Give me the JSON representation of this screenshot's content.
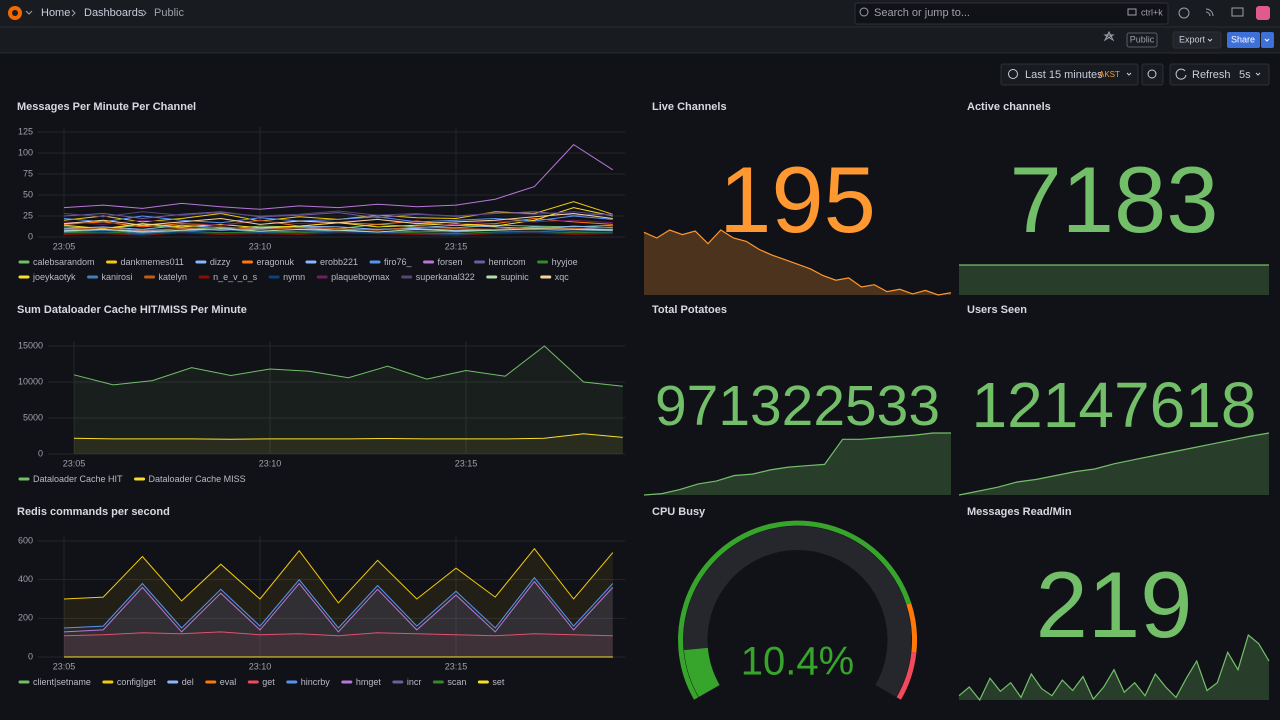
{
  "nav": {
    "breadcrumbs": [
      "Home",
      "Dashboards",
      "Public"
    ],
    "search": "Search or jump to...",
    "shortcut": "ctrl+k"
  },
  "toolbar": {
    "badge": "Public",
    "export": "Export",
    "share": "Share",
    "time_range": "Last 15 minutes",
    "timezone": "AKST",
    "refresh": "Refresh",
    "interval": "5s"
  },
  "panels": [
    {
      "type": "timeseries",
      "title": "Messages Per Minute Per Channel",
      "x": [
        "23:05",
        null,
        null,
        null,
        null,
        "23:10",
        null,
        null,
        null,
        null,
        "23:15",
        null,
        null,
        null,
        null
      ],
      "ylim": [
        0,
        125
      ],
      "yticks": [
        0,
        25,
        50,
        75,
        100,
        125
      ],
      "series": [
        {
          "name": "calebsarandom",
          "color": "#73bf69",
          "values": [
            12,
            10,
            14,
            11,
            9,
            13,
            12,
            10,
            15,
            12,
            11,
            14,
            13,
            12,
            14
          ]
        },
        {
          "name": "dankmemes011",
          "color": "#f2cc0c",
          "values": [
            20,
            25,
            18,
            22,
            28,
            19,
            24,
            21,
            26,
            23,
            22,
            30,
            28,
            42,
            27
          ]
        },
        {
          "name": "dizzy",
          "color": "#8ab8ff",
          "values": [
            8,
            9,
            7,
            10,
            8,
            9,
            11,
            8,
            9,
            10,
            8,
            9,
            12,
            10,
            9
          ]
        },
        {
          "name": "eragonuk",
          "color": "#ff780a",
          "values": [
            15,
            18,
            12,
            16,
            14,
            20,
            13,
            17,
            15,
            19,
            14,
            16,
            22,
            18,
            15
          ]
        },
        {
          "name": "erobb221",
          "color": "#8ab8ff",
          "values": [
            10,
            12,
            9,
            14,
            11,
            10,
            13,
            12,
            9,
            11,
            14,
            12,
            10,
            13,
            11
          ]
        },
        {
          "name": "firo76_",
          "color": "#5794f2",
          "values": [
            22,
            18,
            25,
            20,
            17,
            23,
            19,
            21,
            24,
            18,
            20,
            22,
            19,
            25,
            21
          ]
        },
        {
          "name": "forsen",
          "color": "#b877d9",
          "values": [
            35,
            38,
            34,
            40,
            36,
            33,
            37,
            35,
            39,
            36,
            38,
            45,
            60,
            110,
            80
          ]
        },
        {
          "name": "henricom",
          "color": "#705da0",
          "values": [
            25,
            28,
            22,
            27,
            30,
            24,
            26,
            29,
            23,
            27,
            25,
            28,
            30,
            26,
            27
          ]
        },
        {
          "name": "hyyjoe",
          "color": "#37872d",
          "values": [
            5,
            6,
            4,
            7,
            5,
            6,
            5,
            7,
            6,
            5,
            4,
            6,
            7,
            5,
            6
          ]
        },
        {
          "name": "joeykaotyk",
          "color": "#fade2a",
          "values": [
            14,
            10,
            16,
            12,
            15,
            11,
            13,
            17,
            12,
            14,
            16,
            13,
            20,
            35,
            25
          ]
        },
        {
          "name": "kanirosi",
          "color": "#447ebc",
          "values": [
            6,
            8,
            5,
            7,
            9,
            6,
            7,
            8,
            5,
            7,
            6,
            8,
            9,
            7,
            8
          ]
        },
        {
          "name": "katelyn",
          "color": "#c15c17",
          "values": [
            9,
            11,
            8,
            10,
            12,
            9,
            11,
            10,
            8,
            12,
            10,
            9,
            11,
            10,
            12
          ]
        },
        {
          "name": "n_e_v_o_s",
          "color": "#890f02",
          "values": [
            3,
            4,
            2,
            5,
            3,
            4,
            3,
            5,
            4,
            3,
            2,
            4,
            5,
            3,
            4
          ]
        },
        {
          "name": "nymn",
          "color": "#0a437c",
          "values": [
            4,
            5,
            3,
            6,
            4,
            5,
            4,
            6,
            5,
            4,
            3,
            5,
            6,
            4,
            5
          ]
        },
        {
          "name": "plaqueboymax",
          "color": "#6d1f62",
          "values": [
            18,
            15,
            20,
            17,
            14,
            19,
            16,
            18,
            21,
            17,
            15,
            19,
            18,
            20,
            17
          ]
        },
        {
          "name": "superkanal322",
          "color": "#584477",
          "values": [
            28,
            24,
            30,
            26,
            29,
            25,
            27,
            31,
            26,
            28,
            24,
            29,
            27,
            30,
            26
          ]
        },
        {
          "name": "supinic",
          "color": "#b7dbab",
          "values": [
            7,
            9,
            6,
            8,
            10,
            7,
            9,
            8,
            6,
            9,
            7,
            8,
            10,
            9,
            8
          ]
        },
        {
          "name": "xqc",
          "color": "#f4d598",
          "values": [
            16,
            20,
            14,
            18,
            22,
            15,
            19,
            17,
            21,
            16,
            18,
            20,
            24,
            28,
            22
          ]
        }
      ]
    },
    {
      "type": "stat",
      "title": "Live Channels",
      "value": 195,
      "color": "#ff9830",
      "sparkline": [
        60,
        55,
        62,
        58,
        61,
        50,
        62,
        55,
        52,
        45,
        40,
        36,
        32,
        28,
        22,
        18,
        20,
        12,
        14,
        8,
        10,
        6,
        9,
        5,
        7
      ]
    },
    {
      "type": "stat",
      "title": "Active channels",
      "value": 7183,
      "color": "#73bf69",
      "sparkline": [
        7183,
        7183,
        7183,
        7183,
        7183,
        7183,
        7183,
        7183,
        7183,
        7183,
        7183,
        7183
      ]
    },
    {
      "type": "timeseries",
      "title": "Sum Dataloader Cache HIT/MISS Per Minute",
      "x": [
        "23:05",
        null,
        null,
        null,
        null,
        "23:10",
        null,
        null,
        null,
        null,
        "23:15",
        null,
        null,
        null,
        null
      ],
      "ylim": [
        0,
        15000
      ],
      "yticks": [
        0,
        5000,
        10000,
        15000
      ],
      "fill": true,
      "series": [
        {
          "name": "Dataloader Cache HIT",
          "color": "#73bf69",
          "values": [
            11000,
            9600,
            10200,
            12000,
            10900,
            11800,
            11500,
            10600,
            12200,
            10400,
            11600,
            10800,
            15000,
            10000,
            9400
          ]
        },
        {
          "name": "Dataloader Cache MISS",
          "color": "#fade2a",
          "values": [
            2200,
            2100,
            2100,
            2100,
            2050,
            2100,
            2100,
            2100,
            2150,
            2100,
            2100,
            2100,
            2200,
            2800,
            2300
          ]
        }
      ]
    },
    {
      "type": "stat",
      "title": "Total Potatoes",
      "value": 971322533,
      "color": "#73bf69",
      "sparkline": [
        971100000,
        971105000,
        971120000,
        971140000,
        971150000,
        971170000,
        971175000,
        971190000,
        971200000,
        971205000,
        971210000,
        971300000,
        971300000,
        971305000,
        971310000,
        971315000,
        971322533,
        971322533
      ]
    },
    {
      "type": "stat",
      "title": "Users Seen",
      "value": 12147618,
      "color": "#73bf69",
      "sparkline": [
        12100000,
        12103000,
        12106000,
        12110000,
        12112000,
        12115000,
        12118000,
        12120000,
        12124000,
        12127000,
        12130000,
        12133000,
        12136000,
        12139000,
        12142000,
        12145000,
        12147618
      ]
    },
    {
      "type": "timeseries",
      "title": "Redis commands per second",
      "x": [
        "23:05",
        null,
        null,
        null,
        null,
        "23:10",
        null,
        null,
        null,
        null,
        "23:15",
        null,
        null,
        null,
        null
      ],
      "ylim": [
        0,
        600
      ],
      "yticks": [
        0,
        200,
        400,
        600
      ],
      "fill": true,
      "series": [
        {
          "name": "client|setname",
          "color": "#73bf69",
          "values": [
            0,
            0,
            0,
            0,
            0,
            0,
            0,
            0,
            0,
            0,
            0,
            0,
            0,
            0,
            0
          ]
        },
        {
          "name": "config|get",
          "color": "#f2cc0c",
          "values": [
            300,
            310,
            520,
            290,
            480,
            300,
            550,
            280,
            500,
            300,
            460,
            310,
            560,
            300,
            540
          ]
        },
        {
          "name": "del",
          "color": "#8ab8ff",
          "values": [
            0,
            0,
            0,
            0,
            0,
            0,
            0,
            0,
            0,
            0,
            0,
            0,
            0,
            0,
            0
          ]
        },
        {
          "name": "eval",
          "color": "#ff780a",
          "values": [
            0,
            0,
            0,
            0,
            0,
            0,
            0,
            0,
            0,
            0,
            0,
            0,
            0,
            0,
            0
          ]
        },
        {
          "name": "get",
          "color": "#f2495c",
          "values": [
            110,
            115,
            125,
            120,
            130,
            115,
            120,
            110,
            125,
            120,
            115,
            110,
            120,
            115,
            110
          ]
        },
        {
          "name": "hincrby",
          "color": "#5794f2",
          "values": [
            150,
            160,
            380,
            150,
            350,
            160,
            400,
            150,
            370,
            160,
            340,
            150,
            410,
            160,
            380
          ]
        },
        {
          "name": "hmget",
          "color": "#b877d9",
          "values": [
            130,
            140,
            360,
            130,
            330,
            140,
            380,
            130,
            350,
            140,
            320,
            130,
            390,
            140,
            360
          ]
        },
        {
          "name": "incr",
          "color": "#705da0",
          "values": [
            0,
            0,
            0,
            0,
            0,
            0,
            0,
            0,
            0,
            0,
            0,
            0,
            0,
            0,
            0
          ]
        },
        {
          "name": "scan",
          "color": "#37872d",
          "values": [
            0,
            0,
            0,
            0,
            0,
            0,
            0,
            0,
            0,
            0,
            0,
            0,
            0,
            0,
            0
          ]
        },
        {
          "name": "set",
          "color": "#fade2a",
          "values": [
            0,
            0,
            0,
            0,
            0,
            0,
            0,
            0,
            0,
            0,
            0,
            0,
            0,
            0,
            0
          ]
        }
      ]
    },
    {
      "type": "gauge",
      "title": "CPU Busy",
      "value": 10.4,
      "value_label": "10.4%",
      "min": 0,
      "max": 100,
      "color": "#37a52b",
      "thresholds": [
        {
          "value": 0,
          "color": "#37a52b"
        },
        {
          "value": 80,
          "color": "#ff780a"
        },
        {
          "value": 90,
          "color": "#f2495c"
        }
      ]
    },
    {
      "type": "stat",
      "title": "Messages Read/Min",
      "value": 219,
      "color": "#73bf69",
      "sparkline": [
        190,
        200,
        185,
        210,
        195,
        205,
        188,
        215,
        198,
        190,
        208,
        196,
        212,
        186,
        200,
        220,
        194,
        205,
        190,
        215,
        200,
        188,
        210,
        230,
        196,
        205,
        240,
        220,
        260,
        250,
        230
      ]
    }
  ]
}
